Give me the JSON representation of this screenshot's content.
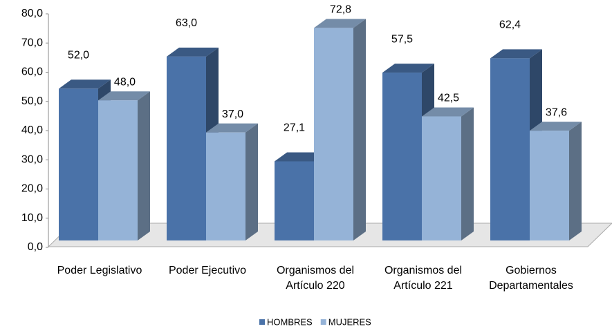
{
  "chart_data": {
    "type": "bar3d",
    "categories": [
      [
        "Poder Legislativo"
      ],
      [
        "Poder Ejecutivo"
      ],
      [
        "Organismos del",
        "Artículo 220"
      ],
      [
        "Organismos del",
        "Artículo 221"
      ],
      [
        "Gobiernos",
        "Departamentales"
      ]
    ],
    "series": [
      {
        "name": "HOMBRES",
        "color": "#4a72a8",
        "values": [
          52.0,
          63.0,
          27.1,
          57.5,
          62.4
        ],
        "value_labels": [
          "52,0",
          "63,0",
          "27,1",
          "57,5",
          "62,4"
        ]
      },
      {
        "name": "MUJERES",
        "color": "#95b3d7",
        "values": [
          48.0,
          37.0,
          72.8,
          42.5,
          37.6
        ],
        "value_labels": [
          "48,0",
          "37,0",
          "72,8",
          "42,5",
          "37,6"
        ]
      }
    ],
    "ylim": [
      0,
      80
    ],
    "yticks": [
      {
        "value": 0,
        "label": "0,0"
      },
      {
        "value": 10,
        "label": "10,0"
      },
      {
        "value": 20,
        "label": "20,0"
      },
      {
        "value": 30,
        "label": "30,0"
      },
      {
        "value": 40,
        "label": "40,0"
      },
      {
        "value": 50,
        "label": "50,0"
      },
      {
        "value": 60,
        "label": "60,0"
      },
      {
        "value": 70,
        "label": "70,0"
      },
      {
        "value": 80,
        "label": "80,0"
      }
    ],
    "legend": "bottom"
  }
}
